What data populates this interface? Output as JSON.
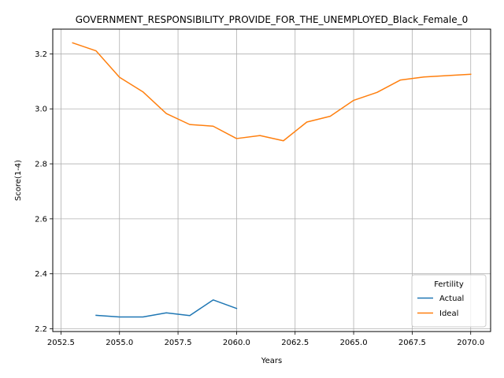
{
  "chart_data": {
    "type": "line",
    "title": "GOVERNMENT_RESPONSIBILITY_PROVIDE_FOR_THE_UNEMPLOYED_Black_Female_0",
    "xlabel": "Years",
    "ylabel": "Score(1-4)",
    "xlim": [
      2052.15,
      2070.85
    ],
    "ylim": [
      2.19,
      3.29
    ],
    "x_ticks": [
      2052.5,
      2055.0,
      2057.5,
      2060.0,
      2062.5,
      2065.0,
      2067.5,
      2070.0
    ],
    "x_tick_labels": [
      "2052.5",
      "2055.0",
      "2057.5",
      "2060.0",
      "2062.5",
      "2065.0",
      "2067.5",
      "2070.0"
    ],
    "y_ticks": [
      2.2,
      2.4,
      2.6,
      2.8,
      3.0,
      3.2
    ],
    "y_tick_labels": [
      "2.2",
      "2.4",
      "2.6",
      "2.8",
      "3.0",
      "3.2"
    ],
    "grid": true,
    "legend": {
      "title": "Fertility",
      "placement": "lower-right"
    },
    "series": [
      {
        "name": "Actual",
        "color": "#1f77b4",
        "x": [
          2054,
          2055,
          2056,
          2057,
          2058,
          2059,
          2060
        ],
        "y": [
          2.249,
          2.243,
          2.243,
          2.258,
          2.248,
          2.305,
          2.274
        ]
      },
      {
        "name": "Ideal",
        "color": "#ff7f0e",
        "x": [
          2053,
          2054,
          2055,
          2056,
          2057,
          2058,
          2059,
          2060,
          2061,
          2062,
          2063,
          2064,
          2065,
          2066,
          2067,
          2068,
          2069,
          2070
        ],
        "y": [
          3.24,
          3.211,
          3.115,
          3.062,
          2.983,
          2.943,
          2.937,
          2.892,
          2.903,
          2.884,
          2.952,
          2.973,
          3.031,
          3.06,
          3.105,
          3.116,
          3.121,
          3.126
        ]
      }
    ]
  }
}
